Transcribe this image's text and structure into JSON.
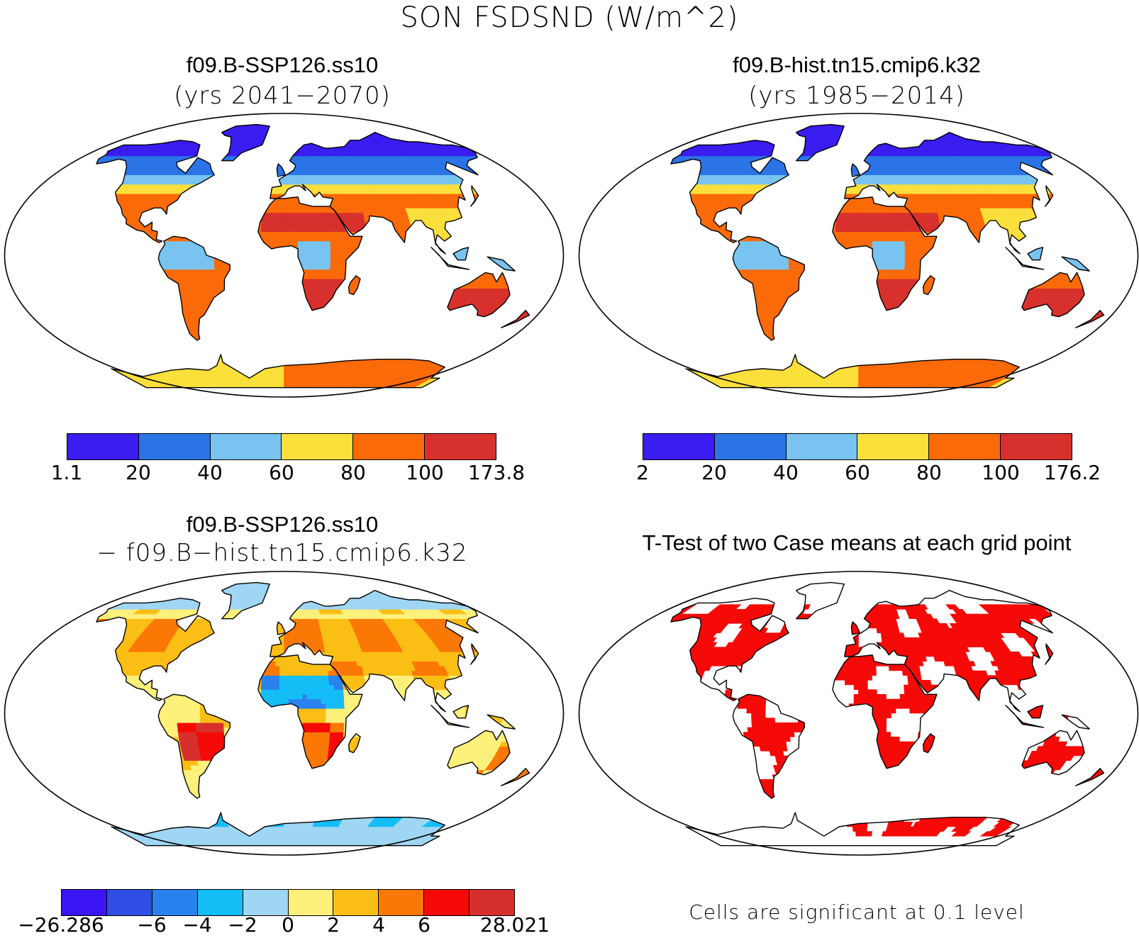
{
  "main_title": "SON FSDSND (W/m^2)",
  "panels": {
    "top_left": {
      "title": "f09.B-SSP126.ss10",
      "subtitle": "(yrs 2041−2070)",
      "colorbar": {
        "colors": [
          "#3a1df0",
          "#2b74e6",
          "#78c3ef",
          "#fbdf3b",
          "#fb6a08",
          "#d8302c"
        ],
        "labels": [
          "1.1",
          "20",
          "40",
          "60",
          "80",
          "100",
          "173.8"
        ]
      }
    },
    "top_right": {
      "title": "f09.B-hist.tn15.cmip6.k32",
      "subtitle": "(yrs 1985−2014)",
      "colorbar": {
        "colors": [
          "#3a1df0",
          "#2b74e6",
          "#78c3ef",
          "#fbdf3b",
          "#fb6a08",
          "#d8302c"
        ],
        "labels": [
          "2",
          "20",
          "40",
          "60",
          "80",
          "100",
          "176.2"
        ]
      }
    },
    "bottom_left": {
      "title": "f09.B-SSP126.ss10",
      "subtitle": "− f09.B−hist.tn15.cmip6.k32",
      "colorbar": {
        "colors": [
          "#3a14f2",
          "#2e4ee6",
          "#2a82ee",
          "#14bdf6",
          "#9fd6f3",
          "#fdf07b",
          "#fbbe14",
          "#fb7806",
          "#f50a08",
          "#d7302c"
        ],
        "labels": [
          "−26.286",
          "−6",
          "−4",
          "−2",
          "0",
          "2",
          "4",
          "6",
          "28.021"
        ]
      }
    },
    "bottom_right": {
      "title": "T-Test of two Case means at each grid point",
      "note": "Cells are significant at 0.1 level",
      "significant_color": "#f50a08"
    }
  },
  "map_colors": {
    "cold": "#3a1df0",
    "cool": "#2b74e6",
    "light": "#78c3ef",
    "yellow": "#fbdf3b",
    "orange": "#fb6a08",
    "red": "#d8302c"
  }
}
